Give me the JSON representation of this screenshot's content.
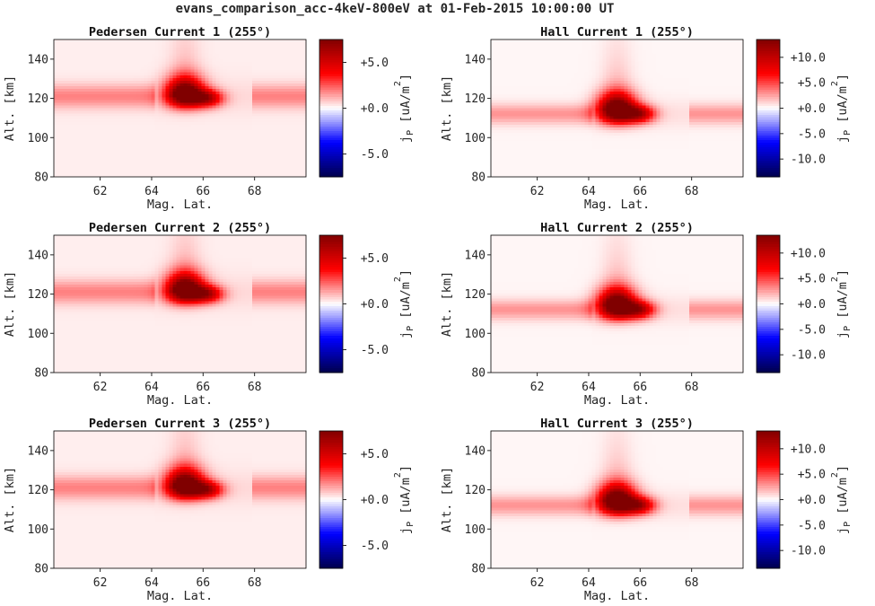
{
  "figure": {
    "suptitle": "evans_comparison_acc-4keV-800eV at 01-Feb-2015 10:00:00 UT"
  },
  "chart_data": [
    {
      "type": "heatmap",
      "title": "Pedersen Current 1 (255°)",
      "xlabel": "Mag. Lat.",
      "ylabel": "Alt. [km]",
      "xlim": [
        60.2,
        70.0
      ],
      "ylim": [
        80,
        150
      ],
      "xticks": [
        62,
        64,
        66,
        68
      ],
      "xtick_labels": [
        "62",
        "64",
        "66",
        "68"
      ],
      "yticks": [
        80,
        100,
        120,
        140
      ],
      "ytick_labels": [
        "80",
        "100",
        "120",
        "140"
      ],
      "colorbar": {
        "label": "j",
        "label_sub": "P",
        "label_unit": "[uA/m",
        "label_sup": "2",
        "label_close": "]",
        "range": [
          -7.5,
          7.5
        ],
        "ticks": [
          -5,
          0,
          5
        ],
        "tick_labels": [
          "-5.0",
          "+0.0",
          "+5.0"
        ],
        "colormap": "seismic"
      },
      "features": {
        "band_alt_km": 121,
        "band_width_km": 6,
        "band_value": 1.6,
        "gap_lat": [
          64.1,
          67.9
        ],
        "gap_value": 0.3,
        "blob_lat": 65.3,
        "blob_alt_km": 121,
        "blob_peak": 8.5
      }
    },
    {
      "type": "heatmap",
      "title": "Hall Current 1 (255°)",
      "xlabel": "Mag. Lat.",
      "ylabel": "Alt. [km]",
      "xlim": [
        60.2,
        70.0
      ],
      "ylim": [
        80,
        150
      ],
      "xticks": [
        62,
        64,
        66,
        68
      ],
      "xtick_labels": [
        "62",
        "64",
        "66",
        "68"
      ],
      "yticks": [
        80,
        100,
        120,
        140
      ],
      "ytick_labels": [
        "80",
        "100",
        "120",
        "140"
      ],
      "colorbar": {
        "label": "j",
        "label_sub": "P",
        "label_unit": "[uA/m",
        "label_sup": "2",
        "label_close": "]",
        "range": [
          -13.5,
          13.5
        ],
        "ticks": [
          -10,
          -5,
          0,
          5,
          10
        ],
        "tick_labels": [
          "-10.0",
          "-5.0",
          "+0.0",
          "+5.0",
          "+10.0"
        ],
        "colormap": "seismic"
      },
      "features": {
        "band_alt_km": 112,
        "band_width_km": 5,
        "band_value": 2.6,
        "gap_lat": [
          64.1,
          67.9
        ],
        "gap_value": 0.6,
        "blob_lat": 65.1,
        "blob_alt_km": 113,
        "blob_peak": 16
      }
    },
    {
      "type": "heatmap",
      "title": "Pedersen Current 2 (255°)",
      "xlabel": "Mag. Lat.",
      "ylabel": "Alt. [km]",
      "xlim": [
        60.2,
        70.0
      ],
      "ylim": [
        80,
        150
      ],
      "xticks": [
        62,
        64,
        66,
        68
      ],
      "xtick_labels": [
        "62",
        "64",
        "66",
        "68"
      ],
      "yticks": [
        80,
        100,
        120,
        140
      ],
      "ytick_labels": [
        "80",
        "100",
        "120",
        "140"
      ],
      "colorbar": {
        "label": "j",
        "label_sub": "P",
        "label_unit": "[uA/m",
        "label_sup": "2",
        "label_close": "]",
        "range": [
          -7.5,
          7.5
        ],
        "ticks": [
          -5,
          0,
          5
        ],
        "tick_labels": [
          "-5.0",
          "+0.0",
          "+5.0"
        ],
        "colormap": "seismic"
      },
      "features": {
        "band_alt_km": 121,
        "band_width_km": 6,
        "band_value": 1.6,
        "gap_lat": [
          64.1,
          67.9
        ],
        "gap_value": 0.3,
        "blob_lat": 65.3,
        "blob_alt_km": 121,
        "blob_peak": 8.5
      }
    },
    {
      "type": "heatmap",
      "title": "Hall Current 2 (255°)",
      "xlabel": "Mag. Lat.",
      "ylabel": "Alt. [km]",
      "xlim": [
        60.2,
        70.0
      ],
      "ylim": [
        80,
        150
      ],
      "xticks": [
        62,
        64,
        66,
        68
      ],
      "xtick_labels": [
        "62",
        "64",
        "66",
        "68"
      ],
      "yticks": [
        80,
        100,
        120,
        140
      ],
      "ytick_labels": [
        "80",
        "100",
        "120",
        "140"
      ],
      "colorbar": {
        "label": "j",
        "label_sub": "P",
        "label_unit": "[uA/m",
        "label_sup": "2",
        "label_close": "]",
        "range": [
          -13.5,
          13.5
        ],
        "ticks": [
          -10,
          -5,
          0,
          5,
          10
        ],
        "tick_labels": [
          "-10.0",
          "-5.0",
          "+0.0",
          "+5.0",
          "+10.0"
        ],
        "colormap": "seismic"
      },
      "features": {
        "band_alt_km": 112,
        "band_width_km": 5,
        "band_value": 2.6,
        "gap_lat": [
          64.1,
          67.9
        ],
        "gap_value": 0.6,
        "blob_lat": 65.1,
        "blob_alt_km": 113,
        "blob_peak": 16
      }
    },
    {
      "type": "heatmap",
      "title": "Pedersen Current 3 (255°)",
      "xlabel": "Mag. Lat.",
      "ylabel": "Alt. [km]",
      "xlim": [
        60.2,
        70.0
      ],
      "ylim": [
        80,
        150
      ],
      "xticks": [
        62,
        64,
        66,
        68
      ],
      "xtick_labels": [
        "62",
        "64",
        "66",
        "68"
      ],
      "yticks": [
        80,
        100,
        120,
        140
      ],
      "ytick_labels": [
        "80",
        "100",
        "120",
        "140"
      ],
      "colorbar": {
        "label": "j",
        "label_sub": "P",
        "label_unit": "[uA/m",
        "label_sup": "2",
        "label_close": "]",
        "range": [
          -7.5,
          7.5
        ],
        "ticks": [
          -5,
          0,
          5
        ],
        "tick_labels": [
          "-5.0",
          "+0.0",
          "+5.0"
        ],
        "colormap": "seismic"
      },
      "features": {
        "band_alt_km": 121,
        "band_width_km": 6,
        "band_value": 1.6,
        "gap_lat": [
          64.1,
          67.9
        ],
        "gap_value": 0.3,
        "blob_lat": 65.3,
        "blob_alt_km": 121,
        "blob_peak": 8.5
      }
    },
    {
      "type": "heatmap",
      "title": "Hall Current 3 (255°)",
      "xlabel": "Mag. Lat.",
      "ylabel": "Alt. [km]",
      "xlim": [
        60.2,
        70.0
      ],
      "ylim": [
        80,
        150
      ],
      "xticks": [
        62,
        64,
        66,
        68
      ],
      "xtick_labels": [
        "62",
        "64",
        "66",
        "68"
      ],
      "yticks": [
        80,
        100,
        120,
        140
      ],
      "ytick_labels": [
        "80",
        "100",
        "120",
        "140"
      ],
      "colorbar": {
        "label": "j",
        "label_sub": "P",
        "label_unit": "[uA/m",
        "label_sup": "2",
        "label_close": "]",
        "range": [
          -13.5,
          13.5
        ],
        "ticks": [
          -10,
          -5,
          0,
          5,
          10
        ],
        "tick_labels": [
          "-10.0",
          "-5.0",
          "+0.0",
          "+5.0",
          "+10.0"
        ],
        "colormap": "seismic"
      },
      "features": {
        "band_alt_km": 112,
        "band_width_km": 5,
        "band_value": 2.6,
        "gap_lat": [
          64.1,
          67.9
        ],
        "gap_value": 0.6,
        "blob_lat": 65.1,
        "blob_alt_km": 113,
        "blob_peak": 16
      }
    }
  ]
}
